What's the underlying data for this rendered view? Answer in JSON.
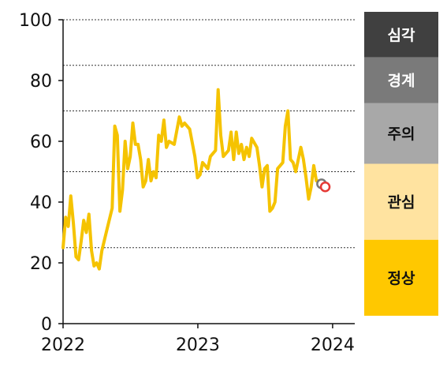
{
  "chart_data": {
    "type": "line",
    "title": "",
    "xlabel": "",
    "ylabel": "",
    "ylim": [
      0,
      100
    ],
    "xlim": [
      "2022-01-01",
      "2024-03-01"
    ],
    "yticks": [
      0,
      20,
      40,
      60,
      80,
      100
    ],
    "xticks": [
      {
        "label": "2022",
        "date": "2022-01-01"
      },
      {
        "label": "2023",
        "date": "2023-01-01"
      },
      {
        "label": "2024",
        "date": "2024-01-01"
      }
    ],
    "grid": {
      "dotted_y": [
        25,
        50,
        70,
        85,
        100
      ]
    },
    "line_color": "#F5C300",
    "series": [
      {
        "values": [
          [
            "2022-01-01",
            25
          ],
          [
            "2022-01-08",
            35
          ],
          [
            "2022-01-15",
            32
          ],
          [
            "2022-01-22",
            42
          ],
          [
            "2022-01-29",
            33
          ],
          [
            "2022-02-05",
            22
          ],
          [
            "2022-02-12",
            21
          ],
          [
            "2022-02-19",
            27
          ],
          [
            "2022-02-26",
            34
          ],
          [
            "2022-03-05",
            30
          ],
          [
            "2022-03-12",
            36
          ],
          [
            "2022-03-19",
            24
          ],
          [
            "2022-03-26",
            19
          ],
          [
            "2022-04-02",
            20
          ],
          [
            "2022-04-09",
            18
          ],
          [
            "2022-04-16",
            24
          ],
          [
            "2022-04-30",
            31
          ],
          [
            "2022-05-14",
            38
          ],
          [
            "2022-05-21",
            65
          ],
          [
            "2022-05-28",
            62
          ],
          [
            "2022-06-04",
            37
          ],
          [
            "2022-06-11",
            44
          ],
          [
            "2022-06-18",
            60
          ],
          [
            "2022-06-25",
            51
          ],
          [
            "2022-07-02",
            55
          ],
          [
            "2022-07-09",
            66
          ],
          [
            "2022-07-16",
            59
          ],
          [
            "2022-07-23",
            59
          ],
          [
            "2022-07-30",
            54
          ],
          [
            "2022-08-06",
            45
          ],
          [
            "2022-08-13",
            47
          ],
          [
            "2022-08-20",
            54
          ],
          [
            "2022-08-27",
            47
          ],
          [
            "2022-09-03",
            50
          ],
          [
            "2022-09-10",
            48
          ],
          [
            "2022-09-17",
            62
          ],
          [
            "2022-09-24",
            60
          ],
          [
            "2022-10-01",
            67
          ],
          [
            "2022-10-08",
            58
          ],
          [
            "2022-10-15",
            60
          ],
          [
            "2022-10-29",
            59
          ],
          [
            "2022-11-12",
            68
          ],
          [
            "2022-11-19",
            65
          ],
          [
            "2022-11-26",
            66
          ],
          [
            "2022-12-10",
            64
          ],
          [
            "2022-12-24",
            55
          ],
          [
            "2022-12-31",
            48
          ],
          [
            "2023-01-07",
            49
          ],
          [
            "2023-01-14",
            53
          ],
          [
            "2023-01-28",
            51
          ],
          [
            "2023-02-04",
            55
          ],
          [
            "2023-02-18",
            57
          ],
          [
            "2023-02-25",
            77
          ],
          [
            "2023-03-04",
            62
          ],
          [
            "2023-03-11",
            55
          ],
          [
            "2023-03-25",
            57
          ],
          [
            "2023-04-01",
            63
          ],
          [
            "2023-04-08",
            54
          ],
          [
            "2023-04-15",
            63
          ],
          [
            "2023-04-22",
            56
          ],
          [
            "2023-04-29",
            59
          ],
          [
            "2023-05-06",
            54
          ],
          [
            "2023-05-13",
            58
          ],
          [
            "2023-05-20",
            55
          ],
          [
            "2023-05-27",
            61
          ],
          [
            "2023-06-10",
            58
          ],
          [
            "2023-06-17",
            52
          ],
          [
            "2023-06-24",
            45
          ],
          [
            "2023-07-01",
            51
          ],
          [
            "2023-07-08",
            52
          ],
          [
            "2023-07-15",
            37
          ],
          [
            "2023-07-22",
            38
          ],
          [
            "2023-07-29",
            40
          ],
          [
            "2023-08-05",
            51
          ],
          [
            "2023-08-12",
            52
          ],
          [
            "2023-08-19",
            53
          ],
          [
            "2023-08-26",
            65
          ],
          [
            "2023-09-02",
            70
          ],
          [
            "2023-09-09",
            54
          ],
          [
            "2023-09-16",
            53
          ],
          [
            "2023-09-23",
            50
          ],
          [
            "2023-10-07",
            58
          ],
          [
            "2023-10-14",
            54
          ],
          [
            "2023-10-21",
            48
          ],
          [
            "2023-10-28",
            41
          ],
          [
            "2023-11-04",
            45
          ],
          [
            "2023-11-11",
            52
          ],
          [
            "2023-11-18",
            47
          ],
          [
            "2023-11-25",
            47
          ],
          [
            "2023-12-02",
            46
          ]
        ]
      }
    ],
    "markers": [
      {
        "date": "2023-12-02",
        "value": 46,
        "fill": "#ffffff",
        "stroke": "#777777"
      },
      {
        "date": "2023-12-12",
        "value": 45,
        "fill": "#ffffff",
        "stroke": "#E53935"
      }
    ]
  },
  "legend_bands": [
    {
      "label": "심각",
      "color": "#404040",
      "text_color": "#ffffff",
      "from": 85,
      "to": 100
    },
    {
      "label": "경계",
      "color": "#7a7a7a",
      "text_color": "#ffffff",
      "from": 70,
      "to": 85
    },
    {
      "label": "주의",
      "color": "#a8a8a8",
      "text_color": "#111111",
      "from": 50,
      "to": 70
    },
    {
      "label": "관심",
      "color": "#FFE3A0",
      "text_color": "#111111",
      "from": 25,
      "to": 50
    },
    {
      "label": "정상",
      "color": "#FFC800",
      "text_color": "#111111",
      "from": 0,
      "to": 25
    }
  ]
}
